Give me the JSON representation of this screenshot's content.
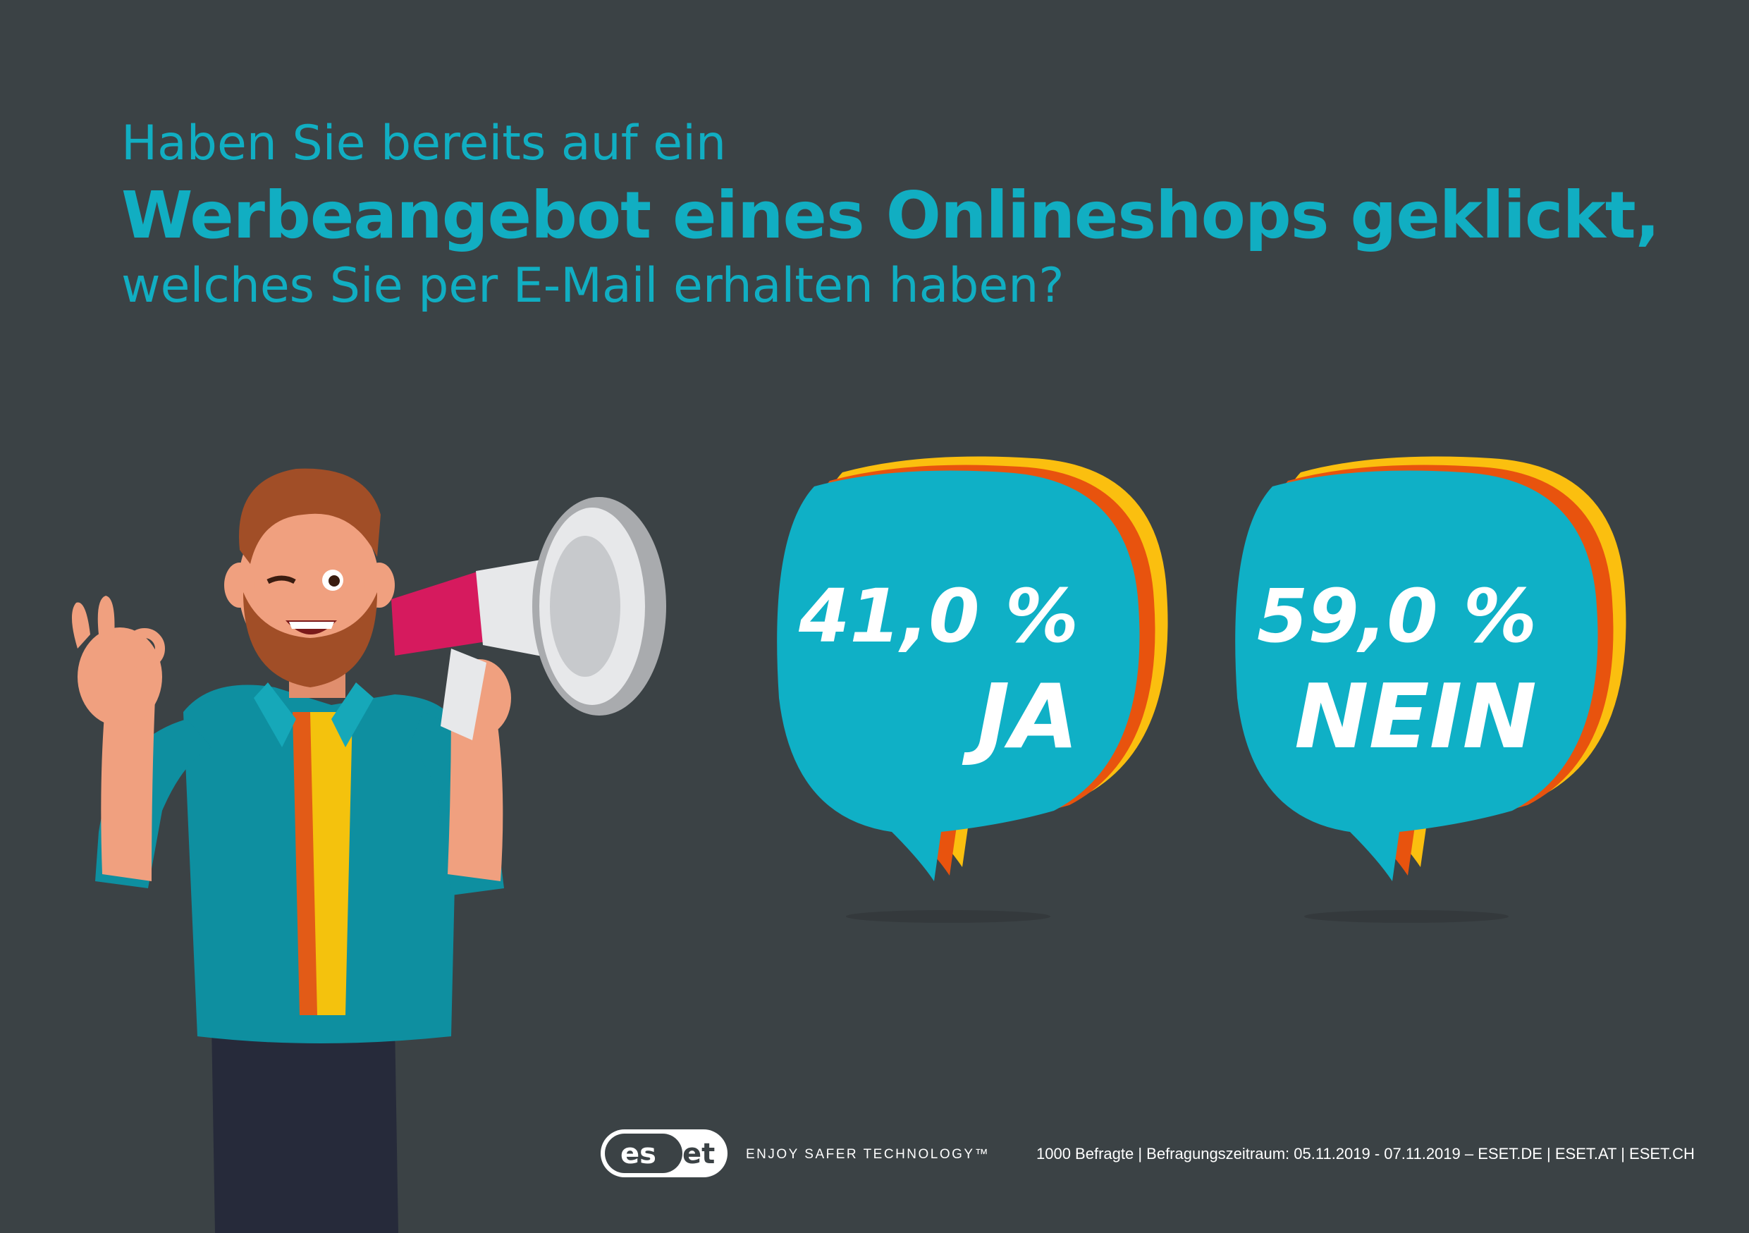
{
  "title": {
    "line1": "Haben Sie bereits auf ein",
    "line2": "Werbeangebot eines Onlineshops geklickt,",
    "line3": "welches Sie per E-Mail erhalten haben?"
  },
  "chart_data": {
    "type": "pie",
    "categories": [
      "JA",
      "NEIN"
    ],
    "values": [
      41.0,
      59.0
    ],
    "value_labels": [
      "41,0 %",
      "59,0 %"
    ],
    "unit": "%"
  },
  "footer": {
    "logo_text": "eset",
    "tagline": "ENJOY SAFER TECHNOLOGY™",
    "source": "1000 Befragte | Befragungszeitraum: 05.11.2019 - 07.11.2019 – ESET.DE | ESET.AT | ESET.CH"
  },
  "colors": {
    "background": "#3b4245",
    "accent": "#11aec2",
    "bubble": "#0fb0c6",
    "bubble_orange": "#e8530e",
    "bubble_yellow": "#fbbf0f"
  },
  "icons": [
    "man-with-megaphone-illustration",
    "speech-bubble-icon",
    "eset-logo"
  ]
}
